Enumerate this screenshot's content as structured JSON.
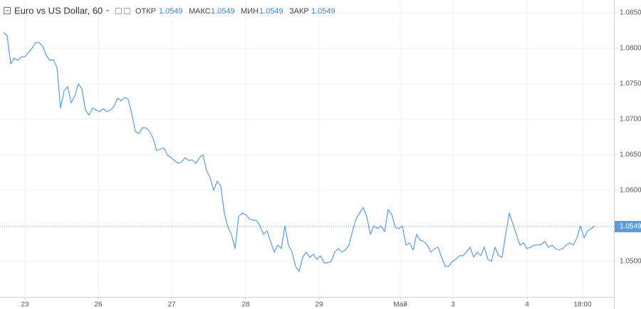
{
  "chart_data": {
    "type": "line",
    "title": "Euro vs US Dollar, 60",
    "ohlc": [
      {
        "label": "ОТКР",
        "value": 1.0549
      },
      {
        "label": "МАКС",
        "value": 1.0549
      },
      {
        "label": "МИН",
        "value": 1.0549
      },
      {
        "label": "ЗАКР",
        "value": 1.0549
      }
    ],
    "last_value": 1.0549,
    "color": "#5b9be0",
    "grid": true,
    "x": [
      1,
      2,
      3,
      4,
      5,
      6,
      7,
      8,
      9,
      10,
      11,
      12,
      13,
      14,
      15,
      16,
      17,
      18,
      19,
      20,
      21,
      22,
      23,
      24,
      25,
      26,
      27,
      28,
      29,
      30,
      31,
      32,
      33,
      34,
      35,
      36,
      37,
      38,
      39,
      40,
      41,
      42,
      43,
      44,
      45,
      46,
      47,
      48,
      49,
      50,
      51,
      52,
      53,
      54,
      55,
      56,
      57,
      58,
      59,
      60,
      61,
      62,
      63,
      64,
      65,
      66,
      67,
      68,
      69,
      70,
      71,
      72,
      73,
      74,
      75,
      76,
      77,
      78,
      79,
      80,
      81,
      82,
      83,
      84,
      85,
      86,
      87,
      88,
      89,
      90,
      91,
      92,
      93,
      94,
      95,
      96,
      97,
      98,
      99,
      100,
      101,
      102,
      103,
      104,
      105,
      106,
      107,
      108,
      109,
      110,
      111,
      112,
      113,
      114,
      115,
      116,
      117,
      118,
      119,
      120,
      121,
      122,
      123,
      124,
      125,
      126,
      127,
      128,
      129,
      130,
      131,
      132,
      133,
      134,
      135,
      136,
      137,
      138,
      139,
      140,
      141,
      142,
      143,
      144,
      145,
      146,
      147,
      148,
      149,
      150,
      151,
      152,
      153,
      154,
      155,
      156,
      157,
      158,
      159,
      160,
      161,
      162,
      163,
      164,
      165,
      166,
      167
    ],
    "values": [
      1.0822,
      1.0818,
      1.0778,
      1.0786,
      1.0783,
      1.0788,
      1.0788,
      1.0794,
      1.08,
      1.0808,
      1.0808,
      1.0803,
      1.079,
      1.0783,
      1.0784,
      1.0773,
      1.0716,
      1.074,
      1.0746,
      1.0723,
      1.0733,
      1.075,
      1.0743,
      1.0713,
      1.0706,
      1.0716,
      1.0713,
      1.0711,
      1.0715,
      1.0711,
      1.0713,
      1.0718,
      1.073,
      1.0726,
      1.0731,
      1.0728,
      1.0708,
      1.0683,
      1.068,
      1.0688,
      1.0688,
      1.0683,
      1.0673,
      1.0656,
      1.0658,
      1.066,
      1.065,
      1.0646,
      1.0642,
      1.0638,
      1.064,
      1.0646,
      1.0642,
      1.0643,
      1.0638,
      1.0646,
      1.065,
      1.0628,
      1.0618,
      1.06,
      1.0613,
      1.0606,
      1.0568,
      1.0548,
      1.0538,
      1.0518,
      1.0563,
      1.0568,
      1.0566,
      1.056,
      1.0558,
      1.0558,
      1.055,
      1.0538,
      1.0543,
      1.0528,
      1.0513,
      1.0523,
      1.0518,
      1.055,
      1.0523,
      1.0513,
      1.0493,
      1.0486,
      1.0506,
      1.0513,
      1.0506,
      1.051,
      1.0503,
      1.0508,
      1.0498,
      1.0498,
      1.05,
      1.0513,
      1.0518,
      1.0513,
      1.0516,
      1.0523,
      1.0543,
      1.056,
      1.0568,
      1.0576,
      1.0563,
      1.0538,
      1.055,
      1.0546,
      1.055,
      1.0542,
      1.0573,
      1.0566,
      1.0548,
      1.0546,
      1.055,
      1.0523,
      1.0526,
      1.0516,
      1.0538,
      1.053,
      1.0528,
      1.0523,
      1.0513,
      1.0518,
      1.052,
      1.0506,
      1.0493,
      1.0493,
      1.05,
      1.0503,
      1.0508,
      1.0508,
      1.0513,
      1.052,
      1.0506,
      1.0513,
      1.0508,
      1.052,
      1.0503,
      1.05,
      1.052,
      1.0508,
      1.0506,
      1.0538,
      1.0568,
      1.0553,
      1.0538,
      1.0523,
      1.0526,
      1.0518,
      1.052,
      1.0523,
      1.0523,
      1.0524,
      1.0528,
      1.052,
      1.0523,
      1.0518,
      1.0516,
      1.0518,
      1.0523,
      1.0526,
      1.0523,
      1.0533,
      1.055,
      1.0533,
      1.0543,
      1.0546,
      1.055
    ],
    "xlim": [
      0,
      172.4
    ],
    "xticks": [
      {
        "value": 7,
        "label": "23"
      },
      {
        "value": 27.6,
        "label": "26"
      },
      {
        "value": 48.2,
        "label": "27"
      },
      {
        "value": 69,
        "label": "28"
      },
      {
        "value": 89.6,
        "label": "29"
      },
      {
        "value": 112.4,
        "label": "Май"
      },
      {
        "value": 127.2,
        "label": "3"
      },
      {
        "value": 148,
        "label": "4"
      },
      {
        "value": 163.6,
        "label": "18:00"
      }
    ],
    "ylim": [
      1.045,
      1.0868
    ],
    "yticks": [
      {
        "value": 1.05,
        "label": "1.0500"
      },
      {
        "value": 1.06,
        "label": "1.0600"
      },
      {
        "value": 1.065,
        "label": "1.0650"
      },
      {
        "value": 1.07,
        "label": "1.0700"
      },
      {
        "value": 1.075,
        "label": "1.0750"
      },
      {
        "value": 1.08,
        "label": "1.0800"
      },
      {
        "value": 1.085,
        "label": "1.0850"
      }
    ]
  }
}
